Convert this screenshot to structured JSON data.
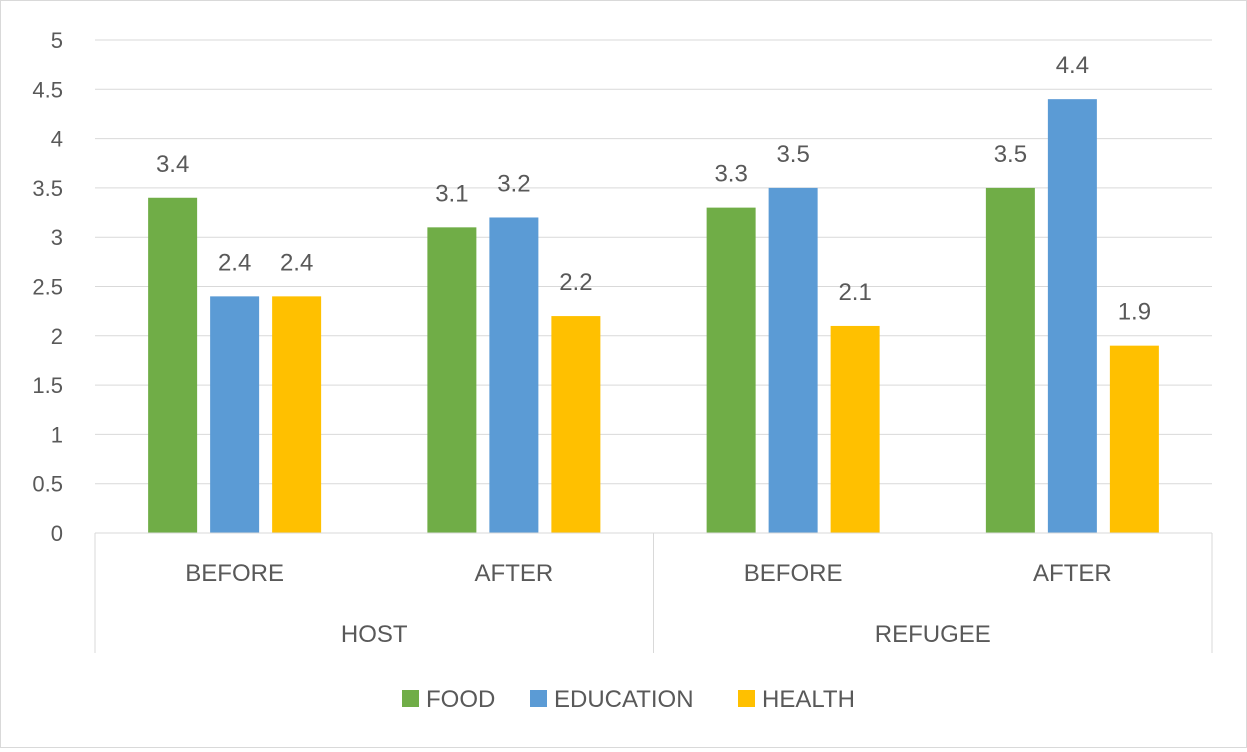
{
  "chart_data": {
    "type": "bar",
    "title": "",
    "xlabel": "",
    "ylabel": "",
    "ylim": [
      0,
      5
    ],
    "yticks": [
      "0",
      "0.5",
      "1",
      "1.5",
      "2",
      "2.5",
      "3",
      "3.5",
      "4",
      "4.5",
      "5"
    ],
    "grid": true,
    "legend_position": "bottom",
    "groups": [
      {
        "label": "HOST",
        "categories": [
          "BEFORE",
          "AFTER"
        ]
      },
      {
        "label": "REFUGEE",
        "categories": [
          "BEFORE",
          "AFTER"
        ]
      }
    ],
    "categories": [
      "BEFORE",
      "AFTER",
      "BEFORE",
      "AFTER"
    ],
    "series": [
      {
        "name": "FOOD",
        "color": "#70ad47",
        "values": [
          3.4,
          3.1,
          3.3,
          3.5
        ],
        "labels": [
          "3.4",
          "3.1",
          "3.3",
          "3.5"
        ]
      },
      {
        "name": "EDUCATION",
        "color": "#5b9bd5",
        "values": [
          2.4,
          3.2,
          3.5,
          4.4
        ],
        "labels": [
          "2.4",
          "3.2",
          "3.5",
          "4.4"
        ]
      },
      {
        "name": "HEALTH",
        "color": "#ffc000",
        "values": [
          2.4,
          2.2,
          2.1,
          1.9
        ],
        "labels": [
          "2.4",
          "2.2",
          "2.1",
          "1.9"
        ]
      }
    ]
  }
}
